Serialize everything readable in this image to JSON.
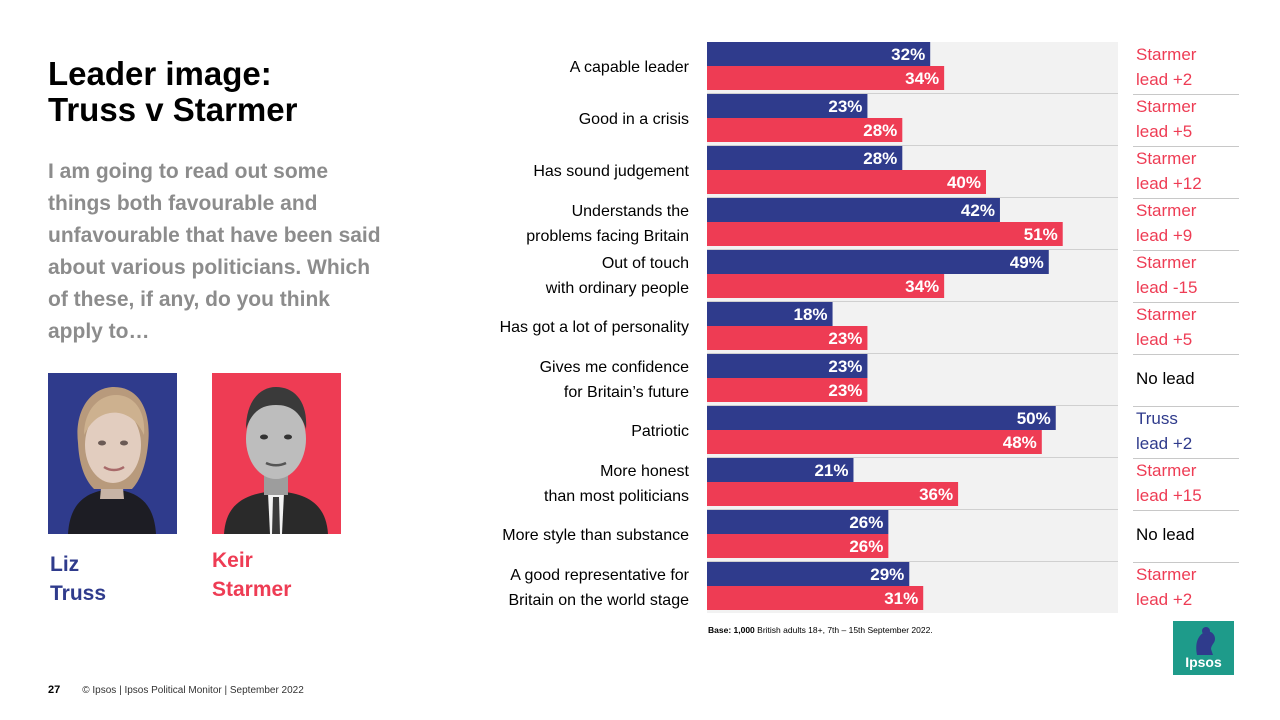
{
  "slide": {
    "title": "Leader image:\nTruss v Starmer",
    "question": "I am going to read out some things both favourable and unfavourable that have been said about various politicians. Which of these, if any, do you think apply to…",
    "people": [
      {
        "name": "Liz\nTruss",
        "color": "#2f3b8c"
      },
      {
        "name": "Keir\nStarmer",
        "color": "#ee3c54"
      }
    ],
    "base_prefix": "Base: 1,000",
    "base_rest": " British adults 18+, 7th – 15th September 2022.",
    "page_number": "27",
    "footer": "© Ipsos | Ipsos  Political Monitor | September 2022",
    "logo_text": "Ipsos"
  },
  "colors": {
    "truss": "#2f3b8c",
    "starmer": "#ee3c54",
    "no_lead": "#000000",
    "panel": "#f2f2f2"
  },
  "chart_data": {
    "type": "bar",
    "orientation": "horizontal",
    "xlim": [
      0,
      100
    ],
    "unit": "%",
    "categories": [
      [
        "A capable leader"
      ],
      [
        "Good in a crisis"
      ],
      [
        "Has sound judgement"
      ],
      [
        "Understands the",
        "problems facing Britain"
      ],
      [
        "Out of touch",
        "with ordinary people"
      ],
      [
        "Has got a lot of personality"
      ],
      [
        "Gives me confidence",
        "for Britain’s future"
      ],
      [
        "Patriotic"
      ],
      [
        "More honest",
        "than most politicians"
      ],
      [
        "More style than substance"
      ],
      [
        "A good representative for",
        "Britain on the world stage"
      ]
    ],
    "series": [
      {
        "name": "Liz Truss",
        "values": [
          32,
          23,
          28,
          42,
          49,
          18,
          23,
          50,
          21,
          26,
          29
        ]
      },
      {
        "name": "Keir Starmer",
        "values": [
          34,
          28,
          40,
          51,
          34,
          23,
          23,
          48,
          36,
          26,
          31
        ]
      }
    ],
    "leads": [
      {
        "lines": [
          "Starmer",
          "lead +2"
        ],
        "who": "starmer"
      },
      {
        "lines": [
          "Starmer",
          "lead +5"
        ],
        "who": "starmer"
      },
      {
        "lines": [
          "Starmer",
          "lead +12"
        ],
        "who": "starmer"
      },
      {
        "lines": [
          "Starmer",
          "lead +9"
        ],
        "who": "starmer"
      },
      {
        "lines": [
          "Starmer",
          "lead -15"
        ],
        "who": "starmer"
      },
      {
        "lines": [
          "Starmer",
          "lead +5"
        ],
        "who": "starmer"
      },
      {
        "lines": [
          "No lead"
        ],
        "who": "none"
      },
      {
        "lines": [
          "Truss",
          "lead +2"
        ],
        "who": "truss"
      },
      {
        "lines": [
          "Starmer",
          "lead +15"
        ],
        "who": "starmer"
      },
      {
        "lines": [
          "No lead"
        ],
        "who": "none"
      },
      {
        "lines": [
          "Starmer",
          "lead +2"
        ],
        "who": "starmer"
      }
    ]
  }
}
